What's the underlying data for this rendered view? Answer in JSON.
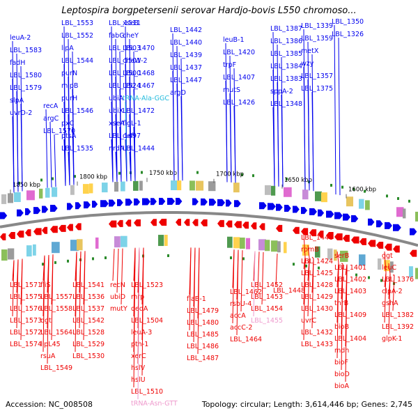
{
  "title": "Leptospira borgpetersenii serovar Hardjo-bovis L550 chromoso...",
  "footer": {
    "accession": "Accession: NC_008508",
    "summary": "Topology: circular; Length: 3,614,446 bp; Genes: 2,745"
  },
  "colors": {
    "forward": "#0000ee",
    "reverse": "#ee0000",
    "trna_forward": "#22bbdd",
    "trna_reverse": "#ee99cc",
    "backbone": "#888888",
    "tick_text": "#000000"
  },
  "ticks": [
    "1850 kbp",
    "1800 kbp",
    "1750 kbp",
    "1700 kbp",
    "1650 kbp",
    "1600 kbp"
  ],
  "top_labels": [
    "leuA-2",
    "LBL_1583",
    "fadH",
    "LBL_1580",
    "LBL_1579",
    "slpA",
    "uvrD-2",
    "recA",
    "argC",
    "LBL_1570",
    "LBL_1553",
    "LBL_1552",
    "lipA",
    "LBL_1544",
    "purN",
    "mipB",
    "purH",
    "LBL_1546",
    "pxC",
    "ptsA",
    "LBL_1535",
    "LBL_1511",
    "fabG",
    "LBL_1503",
    "LBL_1501",
    "LBL_1500",
    "LBL_1524",
    "ubiA",
    "ubiX",
    "xseA",
    "LBL_1497",
    "nrdA",
    "xseB",
    "cheY",
    "LBL_1470",
    "cheW-2",
    "LBL_1468",
    "LBL_1467",
    "tRNA-Ala-GGC",
    "LBL_1472",
    "flgL-1",
    "def",
    "LBL_1444",
    "LBL_1442",
    "LBL_1440",
    "LBL_1439",
    "LBL_1437",
    "LBL_1447",
    "argD",
    "leuB-1",
    "LBL_1420",
    "trpF",
    "LBL_1407",
    "mutS",
    "LBL_1426",
    "LBL_1387",
    "LBL_1386",
    "LBL_1385",
    "LBL_1384",
    "LBL_1383",
    "sppA-2",
    "LBL_1348",
    "LBL_1339",
    "LBL_1359",
    "metX",
    "wzy",
    "LBL_1357",
    "LBL_1375",
    "LBL_1350",
    "LBL_1326"
  ],
  "bottom_labels": [
    "LBL_1571",
    "LBL_1575",
    "LBL_1576",
    "LBL_1573",
    "LBL_1572",
    "LBL_1574",
    "fliS",
    "LBL_1557",
    "LBL_1558",
    "dgt",
    "LBL_1564",
    "lipL45",
    "rsuA",
    "LBL_1549",
    "LBL_1541",
    "LBL_1536",
    "LBL_1537",
    "LBL_1542",
    "LBL_1528",
    "LBL_1529",
    "LBL_1530",
    "recN",
    "ubiD",
    "mutY",
    "LBL_1523",
    "mrp",
    "dedA",
    "LBL_1504",
    "leuA-3",
    "pth-1",
    "xerC",
    "hslV",
    "hslU",
    "LBL_1510",
    "tRNA-Asn-GTT",
    "flaB-1",
    "LBL_1479",
    "LBL_1480",
    "LBL_1485",
    "LBL_1486",
    "LBL_1487",
    "LBL_1462",
    "rsbU-4",
    "accA",
    "accC-2",
    "LBL_1464",
    "LBL_1452",
    "LBL_1453",
    "LBL_1454",
    "LBL_1455",
    "LBL_1448",
    "LBL_1441",
    "rpmB",
    "LBL_1424",
    "LBL_1425",
    "LBL_1428",
    "LBL_1429",
    "LBL_1430",
    "uvrC",
    "LBL_1432",
    "LBL_1433",
    "serB",
    "LBL_1401",
    "LBL_1402",
    "LBL_1403",
    "thrB",
    "LBL_1409",
    "bioB",
    "LBL_1404",
    "mdh",
    "bioF",
    "bioD",
    "bioA",
    "ggt",
    "leuC",
    "LBL_1376",
    "clpA-2",
    "gshA",
    "LBL_1382",
    "LBL_1392",
    "glpK-1"
  ]
}
